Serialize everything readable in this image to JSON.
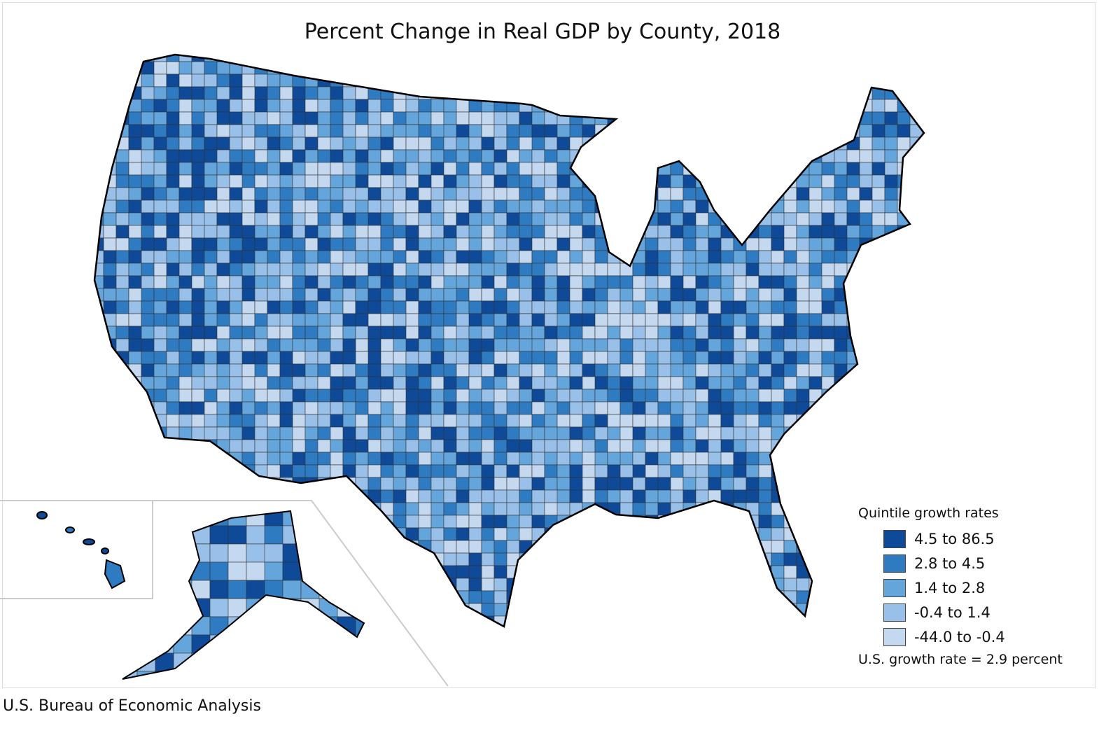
{
  "title": "Percent Change in Real GDP by County, 2018",
  "legend": {
    "title": "Quintile growth rates",
    "items": [
      {
        "label": "4.5 to 86.5",
        "color": "#0e4a98"
      },
      {
        "label": "2.8 to 4.5",
        "color": "#2f7bc2"
      },
      {
        "label": "1.4 to 2.8",
        "color": "#64a6dc"
      },
      {
        "label": "-0.4 to 1.4",
        "color": "#98c0e8"
      },
      {
        "label": "-44.0 to -0.4",
        "color": "#c4d8f0"
      }
    ],
    "us_rate": "U.S. growth rate = 2.9 percent"
  },
  "source": "U.S. Bureau of Economic Analysis"
}
